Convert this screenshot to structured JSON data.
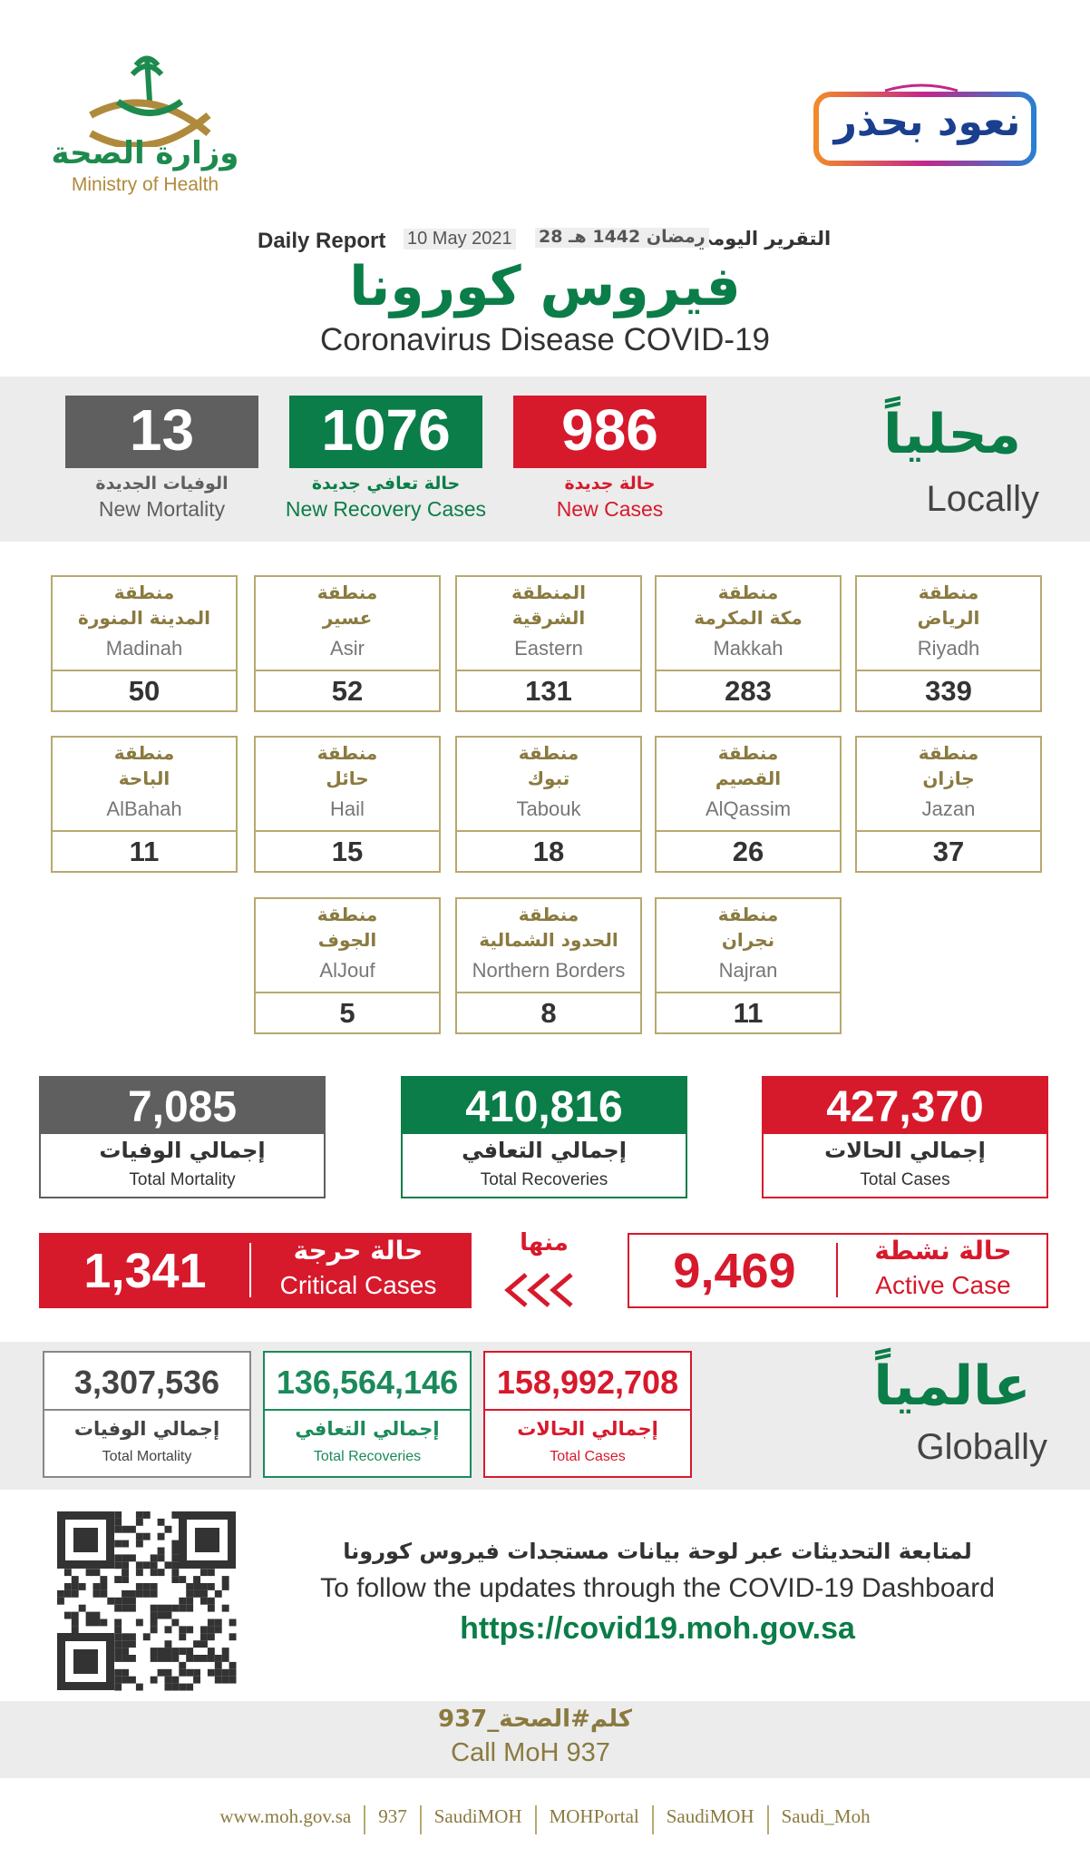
{
  "logo": {
    "ar": "وزارة الصحة",
    "en": "Ministry of Health"
  },
  "campaign": "نعود بحذر",
  "header": {
    "report_ar": "التقرير اليومي",
    "date_hijri": "28 رمضان 1442 هـ",
    "date": "10 May 2021",
    "report_en": "Daily Report",
    "title": "فيروس كورونا",
    "subtitle": "Coronavirus Disease COVID-19"
  },
  "local": {
    "ar": "محلياً",
    "en": "Locally",
    "stats": [
      {
        "value": "986",
        "ar": "حالة جديدة",
        "en": "New Cases"
      },
      {
        "value": "1076",
        "ar": "حالة تعافي جديدة",
        "en": "New Recovery Cases"
      },
      {
        "value": "13",
        "ar": "الوفيات الجديدة",
        "en": "New Mortality"
      }
    ]
  },
  "regions": [
    {
      "ar_top": "منطقة",
      "ar_name": "الرياض",
      "en": "Riyadh",
      "value": "339"
    },
    {
      "ar_top": "منطقة",
      "ar_name": "مكة المكرمة",
      "en": "Makkah",
      "value": "283"
    },
    {
      "ar_top": "المنطقة",
      "ar_name": "الشرقية",
      "en": "Eastern",
      "value": "131"
    },
    {
      "ar_top": "منطقة",
      "ar_name": "عسير",
      "en": "Asir",
      "value": "52"
    },
    {
      "ar_top": "منطقة",
      "ar_name": "المدينة المنورة",
      "en": "Madinah",
      "value": "50"
    },
    {
      "ar_top": "منطقة",
      "ar_name": "جازان",
      "en": "Jazan",
      "value": "37"
    },
    {
      "ar_top": "منطقة",
      "ar_name": "القصيم",
      "en": "AlQassim",
      "value": "26"
    },
    {
      "ar_top": "منطقة",
      "ar_name": "تبوك",
      "en": "Tabouk",
      "value": "18"
    },
    {
      "ar_top": "منطقة",
      "ar_name": "حائل",
      "en": "Hail",
      "value": "15"
    },
    {
      "ar_top": "منطقة",
      "ar_name": "الباحة",
      "en": "AlBahah",
      "value": "11"
    },
    {
      "ar_top": "منطقة",
      "ar_name": "نجران",
      "en": "Najran",
      "value": "11"
    },
    {
      "ar_top": "منطقة",
      "ar_name": "الحدود الشمالية",
      "en": "Northern Borders",
      "value": "8"
    },
    {
      "ar_top": "منطقة",
      "ar_name": "الجوف",
      "en": "AlJouf",
      "value": "5"
    }
  ],
  "totals": [
    {
      "value": "427,370",
      "ar": "إجمالي الحالات",
      "en": "Total Cases"
    },
    {
      "value": "410,816",
      "ar": "إجمالي التعافي",
      "en": "Total Recoveries"
    },
    {
      "value": "7,085",
      "ar": "إجمالي الوفيات",
      "en": "Total Mortality"
    }
  ],
  "active": {
    "value": "9,469",
    "ar": "حالة نشطة",
    "en": "Active Case"
  },
  "of_which": "منها",
  "critical": {
    "value": "1,341",
    "ar": "حالة حرجة",
    "en": "Critical Cases"
  },
  "global": {
    "ar": "عالمياً",
    "en": "Globally",
    "stats": [
      {
        "value": "158,992,708",
        "ar": "إجمالي الحالات",
        "en": "Total Cases"
      },
      {
        "value": "136,564,146",
        "ar": "إجمالي التعافي",
        "en": "Total Recoveries"
      },
      {
        "value": "3,307,536",
        "ar": "إجمالي الوفيات",
        "en": "Total Mortality"
      }
    ]
  },
  "dashboard": {
    "ar": "لمتابعة التحديثات عبر لوحة بيانات مستجدات فيروس كورونا",
    "en": "To follow the updates through the COVID-19 Dashboard",
    "url": "https://covid19.moh.gov.sa"
  },
  "call": {
    "ar": "كلم#الصحة_937",
    "en": "Call MoH 937"
  },
  "links": [
    "www.moh.gov.sa",
    "937",
    "SaudiMOH",
    "MOHPortal",
    "SaudiMOH",
    "Saudi_Moh"
  ]
}
